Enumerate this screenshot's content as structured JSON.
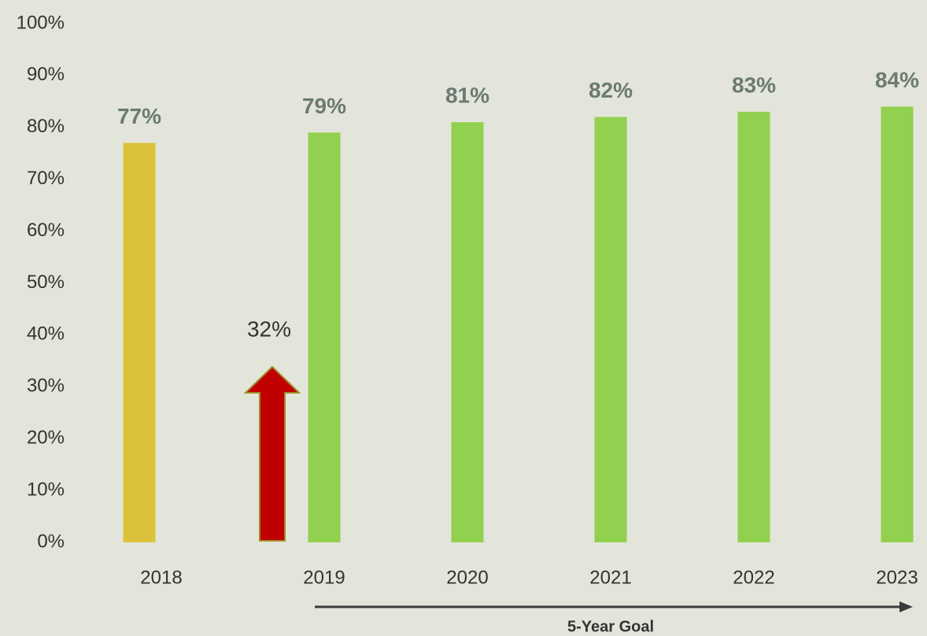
{
  "chart_data": {
    "type": "bar",
    "categories": [
      "2018",
      "2019",
      "2020",
      "2021",
      "2022",
      "2023"
    ],
    "values": [
      77,
      79,
      81,
      82,
      83,
      84
    ],
    "value_labels": [
      "77%",
      "79%",
      "81%",
      "82%",
      "83%",
      "84%"
    ],
    "colors": [
      "#dcc13a",
      "#92d050",
      "#92d050",
      "#92d050",
      "#92d050",
      "#92d050"
    ],
    "ylim": [
      0,
      100
    ],
    "yticks": [
      {
        "value": 0,
        "label": "0%"
      },
      {
        "value": 10,
        "label": "10%"
      },
      {
        "value": 20,
        "label": "20%"
      },
      {
        "value": 30,
        "label": "30%"
      },
      {
        "value": 40,
        "label": "40%"
      },
      {
        "value": 50,
        "label": "50%"
      },
      {
        "value": 60,
        "label": "60%"
      },
      {
        "value": 70,
        "label": "70%"
      },
      {
        "value": 80,
        "label": "80%"
      },
      {
        "value": 90,
        "label": "90%"
      },
      {
        "value": 100,
        "label": "100%"
      }
    ],
    "grid": false,
    "annotations": [
      "32%",
      "5-Year Goal"
    ]
  }
}
